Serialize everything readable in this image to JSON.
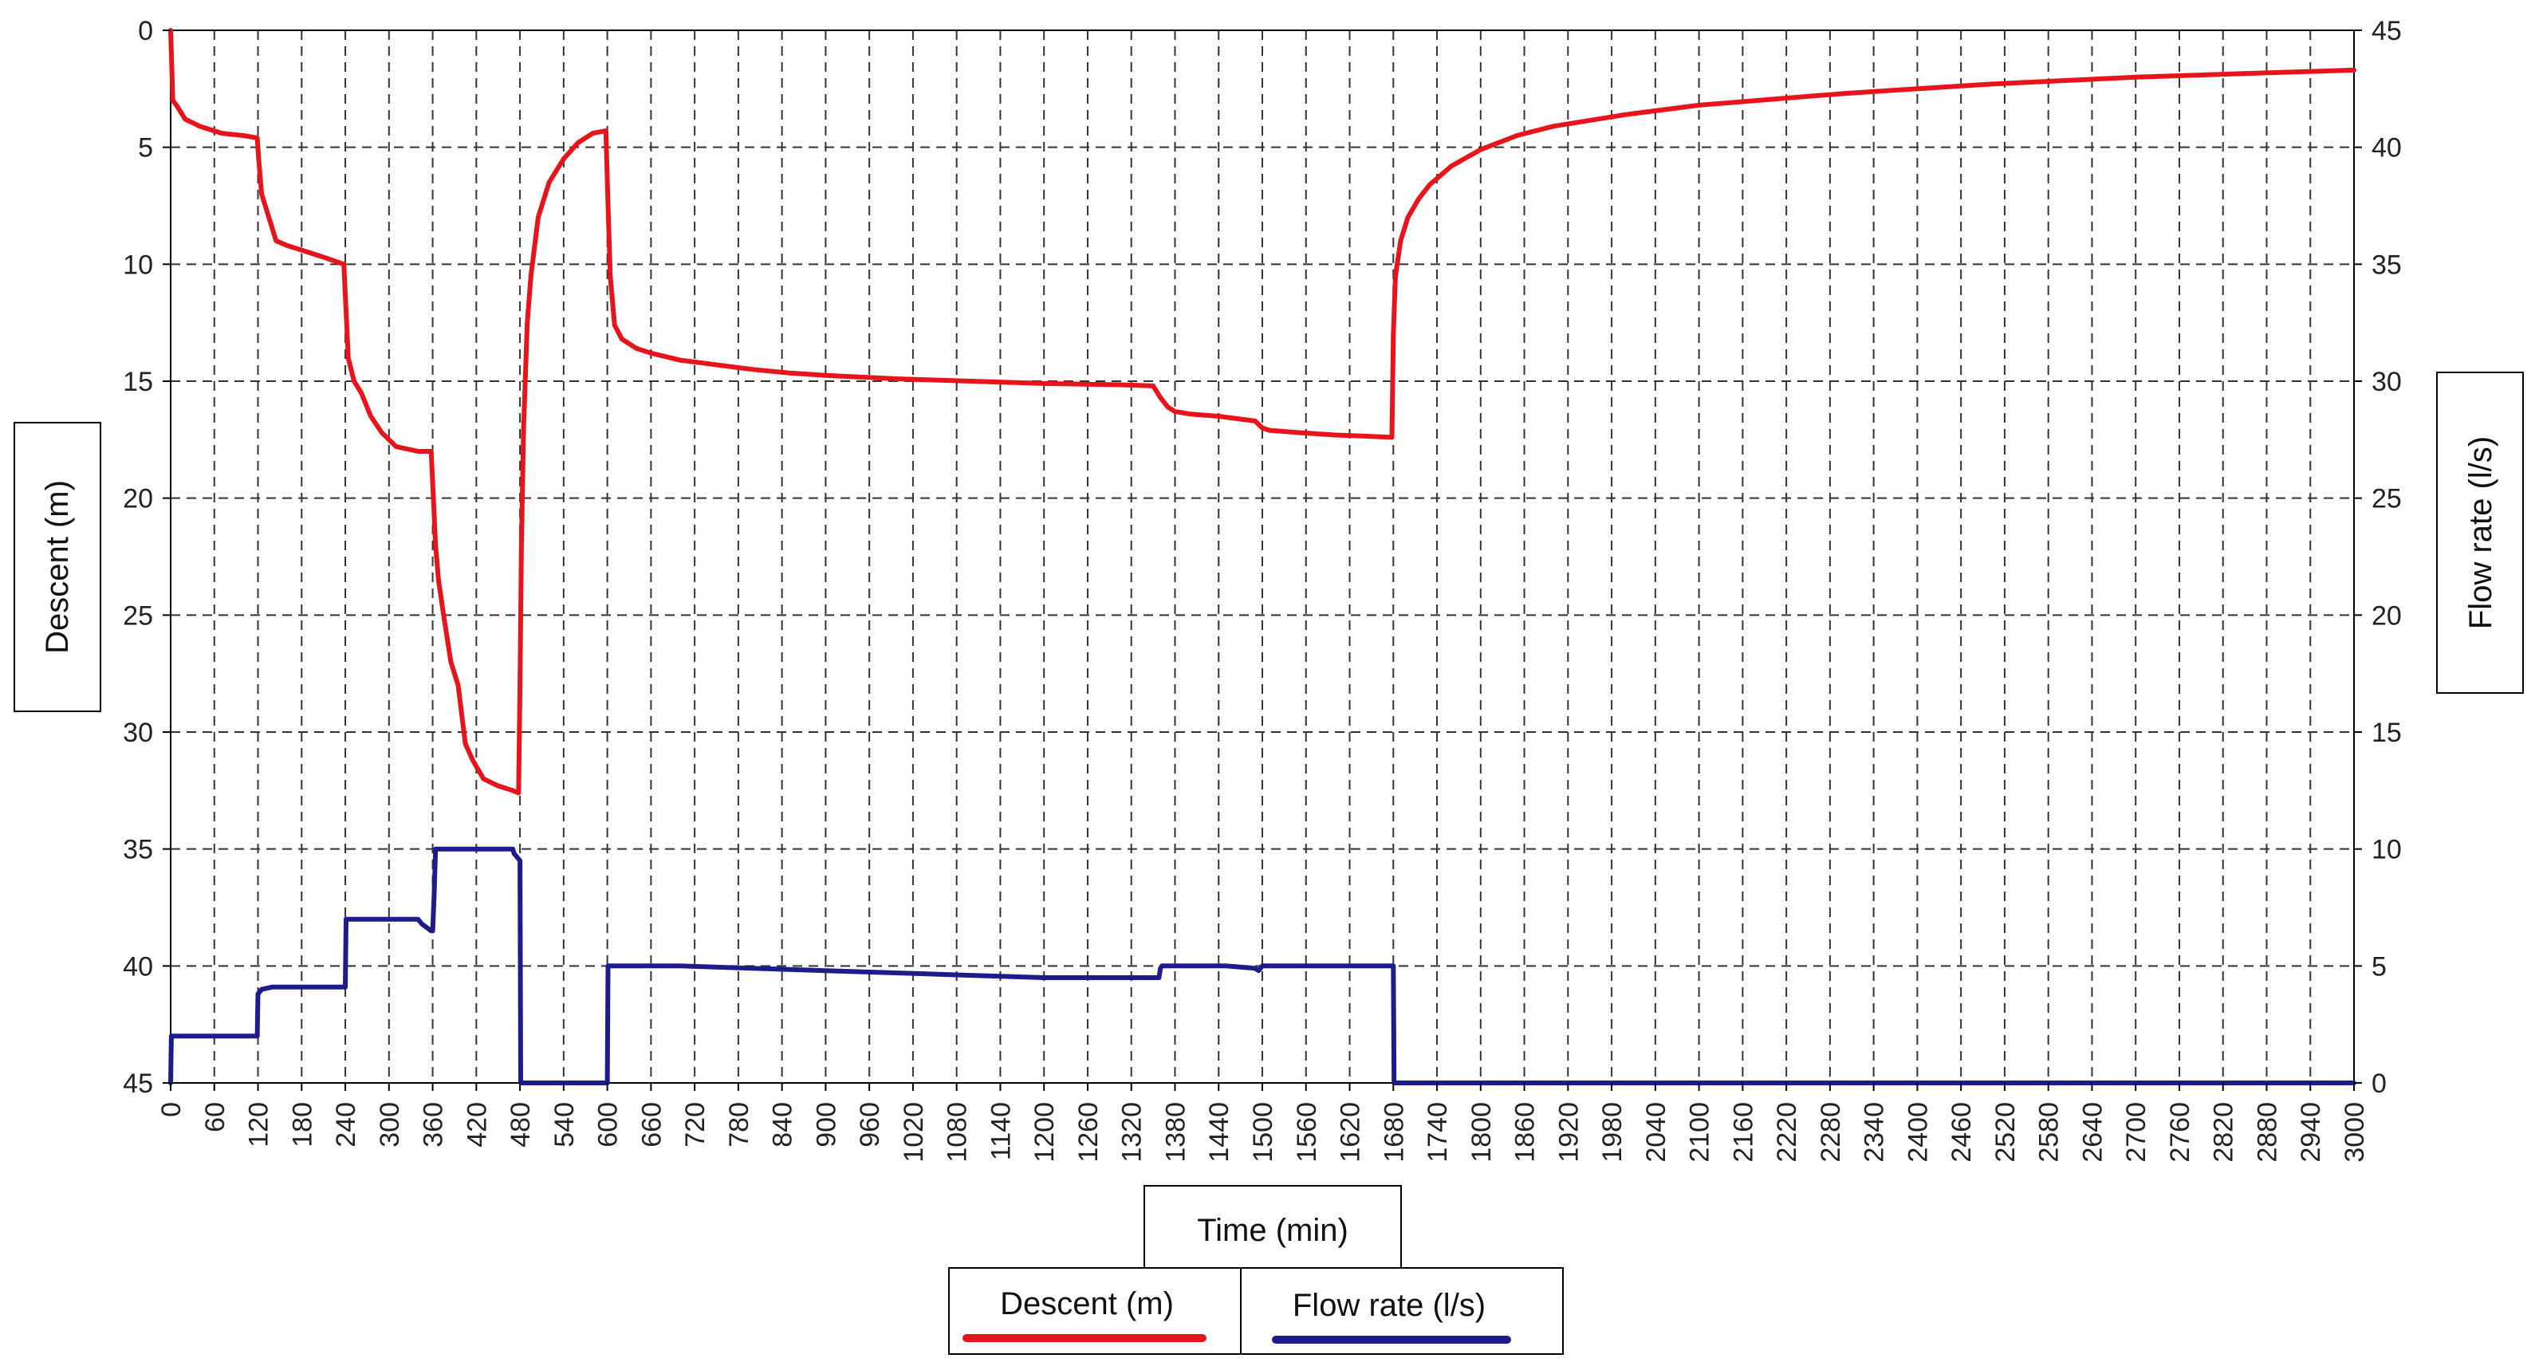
{
  "chart_data": {
    "type": "line",
    "xlabel": "Time (min)",
    "ylabel": "Descent (m)",
    "y2label": "Flow rate (l/s)",
    "xlim": [
      0,
      3000
    ],
    "ylim": [
      0,
      45
    ],
    "ylim_inverted": true,
    "y2lim": [
      0,
      45
    ],
    "x_ticks": [
      0,
      60,
      120,
      180,
      240,
      300,
      360,
      420,
      480,
      540,
      600,
      660,
      720,
      780,
      840,
      900,
      960,
      1020,
      1080,
      1140,
      1200,
      1260,
      1320,
      1380,
      1440,
      1500,
      1560,
      1620,
      1680,
      1740,
      1800,
      1860,
      1920,
      1980,
      2040,
      2100,
      2160,
      2220,
      2280,
      2340,
      2400,
      2460,
      2520,
      2580,
      2640,
      2700,
      2760,
      2820,
      2880,
      2940,
      3000
    ],
    "y_ticks": [
      0,
      5,
      10,
      15,
      20,
      25,
      30,
      35,
      40,
      45
    ],
    "y2_ticks": [
      45,
      40,
      35,
      30,
      25,
      20,
      15,
      10,
      5,
      0
    ],
    "grid": true,
    "legend_position": "bottom-center",
    "colors": {
      "descent": "#e8141c",
      "flow": "#1c1c8c"
    },
    "series": [
      {
        "name": "Descent (m)",
        "axis": "left",
        "x": [
          0,
          1,
          3,
          8,
          20,
          40,
          70,
          100,
          119,
          121,
          125,
          135,
          145,
          160,
          180,
          210,
          238,
          241,
          244,
          252,
          262,
          275,
          290,
          310,
          340,
          358,
          361,
          364,
          368,
          375,
          385,
          395,
          405,
          415,
          430,
          450,
          470,
          478,
          480,
          482,
          485,
          490,
          495,
          505,
          520,
          540,
          560,
          580,
          598,
          601,
          604,
          610,
          620,
          640,
          660,
          700,
          750,
          800,
          850,
          900,
          1000,
          1100,
          1200,
          1300,
          1350,
          1360,
          1370,
          1380,
          1400,
          1440,
          1490,
          1500,
          1510,
          1550,
          1600,
          1640,
          1678,
          1680,
          1683,
          1690,
          1700,
          1715,
          1730,
          1760,
          1800,
          1850,
          1900,
          2000,
          2100,
          2200,
          2300,
          2400,
          2500,
          2600,
          2700,
          2800,
          2900,
          3000
        ],
        "y": [
          0,
          1.0,
          3.0,
          3.2,
          3.8,
          4.1,
          4.4,
          4.5,
          4.6,
          5.5,
          7.0,
          8.0,
          9.0,
          9.2,
          9.4,
          9.7,
          10.0,
          12.0,
          14.0,
          15.0,
          15.5,
          16.5,
          17.2,
          17.8,
          18.0,
          18.0,
          20.0,
          22.0,
          23.5,
          25.0,
          27.0,
          28.0,
          30.5,
          31.2,
          32.0,
          32.3,
          32.5,
          32.6,
          28.0,
          22.0,
          17.0,
          12.5,
          10.5,
          8.0,
          6.5,
          5.5,
          4.8,
          4.4,
          4.3,
          7.5,
          10.5,
          12.6,
          13.2,
          13.6,
          13.8,
          14.1,
          14.3,
          14.5,
          14.65,
          14.75,
          14.9,
          15.0,
          15.1,
          15.15,
          15.2,
          15.7,
          16.1,
          16.3,
          16.4,
          16.5,
          16.7,
          17.0,
          17.1,
          17.2,
          17.3,
          17.35,
          17.4,
          13.0,
          10.5,
          9.0,
          8.0,
          7.2,
          6.6,
          5.8,
          5.1,
          4.5,
          4.1,
          3.6,
          3.2,
          2.95,
          2.7,
          2.5,
          2.3,
          2.15,
          2.0,
          1.9,
          1.8,
          1.7
        ]
      },
      {
        "name": "Flow rate (l/s)",
        "axis": "right",
        "x": [
          0,
          1,
          119,
          120,
          125,
          140,
          240,
          241,
          243,
          340,
          345,
          358,
          360,
          362,
          364,
          470,
          472,
          480,
          481,
          600,
          601,
          700,
          800,
          900,
          1000,
          1100,
          1200,
          1300,
          1358,
          1360,
          1362,
          1450,
          1490,
          1495,
          1500,
          1505,
          1560,
          1600,
          1680,
          1681,
          3000
        ],
        "y": [
          0,
          2.0,
          2.0,
          3.8,
          4.0,
          4.1,
          4.1,
          7.0,
          7.0,
          7.0,
          6.8,
          6.5,
          6.5,
          8.0,
          10.0,
          10.0,
          9.8,
          9.5,
          0,
          0,
          5.0,
          5.0,
          4.9,
          4.8,
          4.7,
          4.6,
          4.5,
          4.5,
          4.5,
          4.9,
          5.0,
          5.0,
          4.9,
          4.8,
          5.0,
          5.0,
          5.0,
          5.0,
          5.0,
          0,
          0
        ]
      }
    ]
  }
}
